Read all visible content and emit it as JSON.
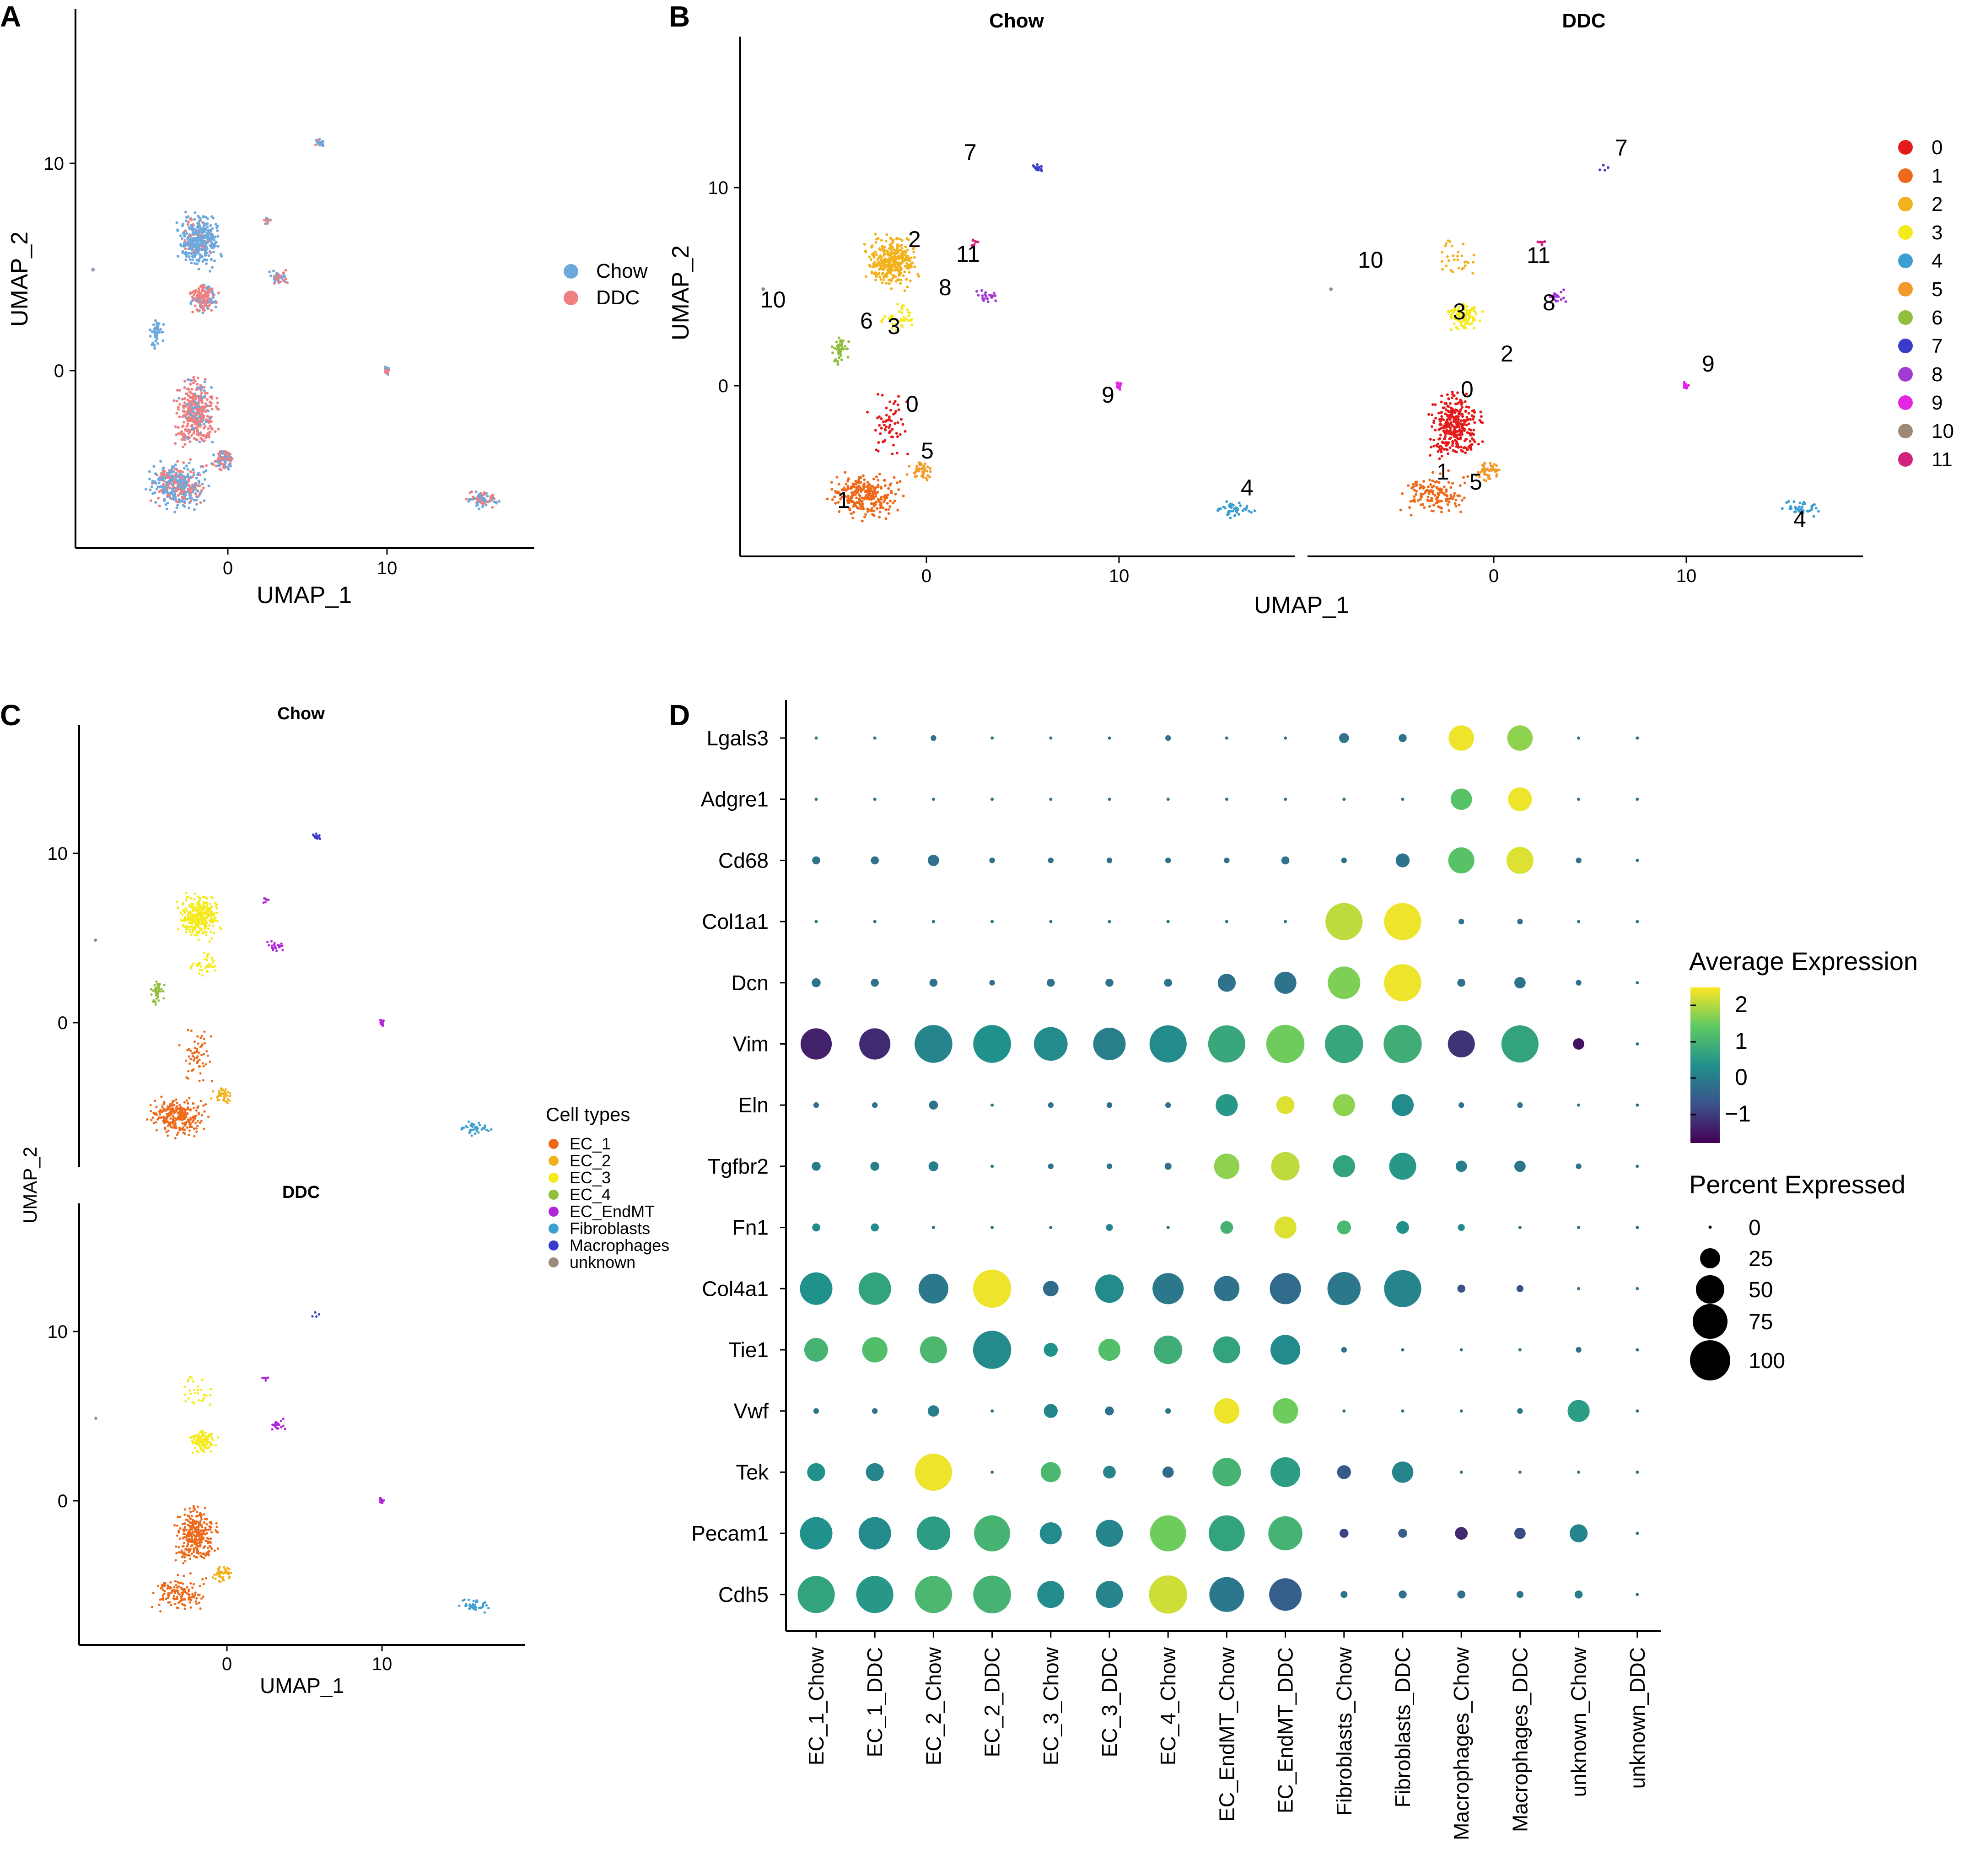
{
  "panels": {
    "A": {
      "label": "A",
      "xlabel": "UMAP_1",
      "ylabel": "UMAP_2",
      "xticks": [
        0,
        10
      ],
      "yticks": [
        0,
        10
      ],
      "legend": [
        {
          "label": "Chow",
          "color": "#6fa8dc"
        },
        {
          "label": "DDC",
          "color": "#f08080"
        }
      ]
    },
    "B": {
      "label": "B",
      "facets": [
        "Chow",
        "DDC"
      ],
      "xlabel": "UMAP_1",
      "ylabel": "UMAP_2",
      "xticks": [
        0,
        10
      ],
      "yticks": [
        0,
        10
      ],
      "legend": [
        {
          "label": "0",
          "color": "#e41a1c"
        },
        {
          "label": "1",
          "color": "#ee6a1a"
        },
        {
          "label": "2",
          "color": "#f2b21d"
        },
        {
          "label": "3",
          "color": "#f4ea1c"
        },
        {
          "label": "4",
          "color": "#3c9fd0"
        },
        {
          "label": "5",
          "color": "#f39a2c"
        },
        {
          "label": "6",
          "color": "#8fbf3c"
        },
        {
          "label": "7",
          "color": "#3a3acb"
        },
        {
          "label": "8",
          "color": "#a23ad6"
        },
        {
          "label": "9",
          "color": "#e526e5"
        },
        {
          "label": "10",
          "color": "#9d8977"
        },
        {
          "label": "11",
          "color": "#d0217d"
        }
      ],
      "chow_cluster_labels": [
        "7",
        "2",
        "11",
        "8",
        "10",
        "6",
        "3",
        "0",
        "9",
        "5",
        "1",
        "4"
      ],
      "ddc_cluster_labels": [
        "7",
        "10",
        "11",
        "3",
        "8",
        "2",
        "9",
        "0",
        "1",
        "5",
        "4"
      ]
    },
    "C": {
      "label": "C",
      "facets": [
        "Chow",
        "DDC"
      ],
      "xlabel": "UMAP_1",
      "ylabel": "UMAP_2",
      "xticks": [
        0,
        10
      ],
      "yticks": [
        0,
        10
      ],
      "legend_title": "Cell types",
      "legend": [
        {
          "label": "EC_1",
          "color": "#ee6a1a"
        },
        {
          "label": "EC_2",
          "color": "#f2b21d"
        },
        {
          "label": "EC_3",
          "color": "#f4ea1c"
        },
        {
          "label": "EC_4",
          "color": "#8fbf3c"
        },
        {
          "label": "EC_EndMT",
          "color": "#b026d8"
        },
        {
          "label": "Fibroblasts",
          "color": "#3c9fd0"
        },
        {
          "label": "Macrophages",
          "color": "#3a3acb"
        },
        {
          "label": "unknown",
          "color": "#9d8977"
        }
      ]
    },
    "D": {
      "label": "D",
      "color_legend_title": "Average Expression",
      "color_ticks": [
        "2",
        "1",
        "0",
        "−1"
      ],
      "size_legend_title": "Percent Expressed",
      "size_ticks": [
        "0",
        "25",
        "50",
        "75",
        "100"
      ]
    }
  },
  "chart_data": [
    {
      "type": "scatter",
      "panel": "A",
      "title": "",
      "xlabel": "UMAP_1",
      "ylabel": "UMAP_2",
      "xlim": [
        -9,
        19
      ],
      "ylim": [
        -9,
        17.5
      ],
      "series": [
        "Chow",
        "DDC"
      ]
    },
    {
      "type": "scatter",
      "panel": "B",
      "facets": [
        "Chow",
        "DDC"
      ],
      "xlabel": "UMAP_1",
      "ylabel": "UMAP_2",
      "xlim": [
        -9,
        19
      ],
      "ylim": [
        -9,
        17.5
      ],
      "clusters": [
        "0",
        "1",
        "2",
        "3",
        "4",
        "5",
        "6",
        "7",
        "8",
        "9",
        "10",
        "11"
      ]
    },
    {
      "type": "scatter",
      "panel": "C",
      "facets": [
        "Chow",
        "DDC"
      ],
      "xlabel": "UMAP_1",
      "ylabel": "UMAP_2",
      "xlim": [
        -9,
        19
      ],
      "ylim": [
        -9,
        17.5
      ],
      "series": [
        "EC_1",
        "EC_2",
        "EC_3",
        "EC_4",
        "EC_EndMT",
        "Fibroblasts",
        "Macrophages",
        "unknown"
      ]
    },
    {
      "type": "dotplot",
      "panel": "D",
      "genes": [
        "Lgals3",
        "Adgre1",
        "Cd68",
        "Col1a1",
        "Dcn",
        "Vim",
        "Eln",
        "Tgfbr2",
        "Fn1",
        "Col4a1",
        "Tie1",
        "Vwf",
        "Tek",
        "Pecam1",
        "Cdh5"
      ],
      "groups": [
        "EC_1_Chow",
        "EC_1_DDC",
        "EC_2_Chow",
        "EC_2_DDC",
        "EC_3_Chow",
        "EC_3_DDC",
        "EC_4_Chow",
        "EC_EndMT_Chow",
        "EC_EndMT_DDC",
        "Fibroblasts_Chow",
        "Fibroblasts_DDC",
        "Macrophages_Chow",
        "Macrophages_DDC",
        "unknown_Chow",
        "unknown_DDC"
      ],
      "color_range": [
        -1.5,
        2.5
      ],
      "pct_range": [
        0,
        100
      ],
      "pct": [
        [
          1,
          1,
          2,
          1,
          1,
          1,
          2,
          1,
          1,
          6,
          4,
          40,
          40,
          1,
          1
        ],
        [
          1,
          1,
          1,
          1,
          1,
          1,
          1,
          1,
          1,
          1,
          1,
          28,
          35,
          1,
          1
        ],
        [
          4,
          4,
          8,
          2,
          2,
          2,
          2,
          2,
          4,
          2,
          12,
          42,
          45,
          2,
          1
        ],
        [
          1,
          1,
          1,
          1,
          1,
          1,
          1,
          1,
          1,
          85,
          85,
          2,
          2,
          1,
          1
        ],
        [
          5,
          4,
          4,
          2,
          4,
          4,
          4,
          20,
          30,
          65,
          85,
          4,
          8,
          2,
          1
        ],
        [
          60,
          60,
          88,
          88,
          70,
          65,
          85,
          85,
          90,
          90,
          90,
          45,
          85,
          8,
          1
        ],
        [
          2,
          2,
          5,
          1,
          2,
          2,
          2,
          30,
          20,
          30,
          30,
          2,
          2,
          1,
          1
        ],
        [
          5,
          5,
          6,
          1,
          2,
          2,
          3,
          40,
          50,
          30,
          45,
          8,
          8,
          2,
          1
        ],
        [
          4,
          4,
          1,
          1,
          1,
          3,
          1,
          10,
          30,
          12,
          10,
          3,
          1,
          1,
          1
        ],
        [
          65,
          65,
          55,
          90,
          15,
          50,
          60,
          40,
          60,
          68,
          85,
          4,
          3,
          1,
          1
        ],
        [
          35,
          40,
          45,
          90,
          12,
          30,
          50,
          45,
          55,
          2,
          1,
          1,
          1,
          2,
          1
        ],
        [
          2,
          2,
          8,
          1,
          12,
          5,
          2,
          40,
          40,
          1,
          1,
          1,
          2,
          30,
          1
        ],
        [
          20,
          20,
          85,
          1,
          25,
          10,
          8,
          50,
          55,
          12,
          28,
          1,
          1,
          1,
          1
        ],
        [
          65,
          65,
          70,
          80,
          30,
          45,
          80,
          80,
          72,
          5,
          5,
          10,
          8,
          20,
          1
        ],
        [
          85,
          85,
          85,
          88,
          45,
          45,
          90,
          75,
          65,
          3,
          4,
          4,
          3,
          4,
          1
        ]
      ],
      "avg": [
        [
          0,
          0,
          0,
          0,
          0,
          0,
          0,
          0,
          0,
          0,
          0,
          2.4,
          1.8,
          0,
          0
        ],
        [
          0,
          0,
          0,
          0,
          0,
          0,
          0,
          0,
          0,
          0,
          0,
          1.4,
          2.4,
          0,
          0
        ],
        [
          0,
          0,
          0,
          0,
          0,
          0,
          0,
          0,
          0,
          0,
          0,
          1.4,
          2.3,
          0,
          0
        ],
        [
          0,
          0,
          0,
          0,
          0,
          0,
          0,
          0,
          0,
          2.1,
          2.4,
          0,
          0,
          0,
          0
        ],
        [
          0,
          0,
          0,
          0,
          0,
          0,
          0,
          0,
          0,
          1.7,
          2.4,
          0,
          0,
          0,
          0
        ],
        [
          -1.1,
          -1.0,
          0.3,
          0.5,
          0.4,
          0.2,
          0.4,
          0.9,
          1.6,
          0.9,
          1.0,
          -0.9,
          0.8,
          -1.3,
          0
        ],
        [
          0,
          0,
          0,
          0,
          0,
          0,
          0,
          0.6,
          2.3,
          1.8,
          0.4,
          0,
          0,
          0,
          0
        ],
        [
          0.2,
          0.2,
          0.2,
          0,
          0,
          0,
          0,
          1.8,
          2.1,
          0.8,
          0.6,
          0.2,
          0.1,
          0,
          0
        ],
        [
          0.4,
          0.4,
          0,
          0,
          0,
          0.3,
          0,
          1.1,
          2.3,
          1.2,
          0.5,
          0.4,
          0,
          0,
          0
        ],
        [
          0.5,
          0.8,
          0.1,
          2.4,
          -0.1,
          0.4,
          0.1,
          0.0,
          -0.1,
          0.1,
          0.3,
          -0.5,
          -0.5,
          0,
          0
        ],
        [
          1.1,
          1.3,
          1.2,
          0.4,
          0.5,
          1.3,
          1.0,
          0.8,
          0.4,
          0,
          0,
          0,
          0,
          0,
          0
        ],
        [
          0,
          0,
          0.2,
          0,
          0.3,
          0,
          0,
          2.4,
          1.6,
          0,
          0,
          0,
          0,
          0.7,
          0
        ],
        [
          0.5,
          0.3,
          2.4,
          0,
          1.2,
          0.3,
          -0.1,
          1.1,
          0.7,
          -0.4,
          0.3,
          0,
          0,
          0,
          0
        ],
        [
          0.5,
          0.4,
          0.7,
          1.1,
          0.4,
          0.3,
          1.6,
          0.8,
          1.1,
          -0.7,
          -0.3,
          -1.0,
          -0.6,
          0.3,
          0
        ],
        [
          0.8,
          0.6,
          1.2,
          1.1,
          0.4,
          0.3,
          2.2,
          0.1,
          -0.3,
          0,
          0,
          0,
          0,
          0.2,
          0
        ]
      ]
    }
  ]
}
